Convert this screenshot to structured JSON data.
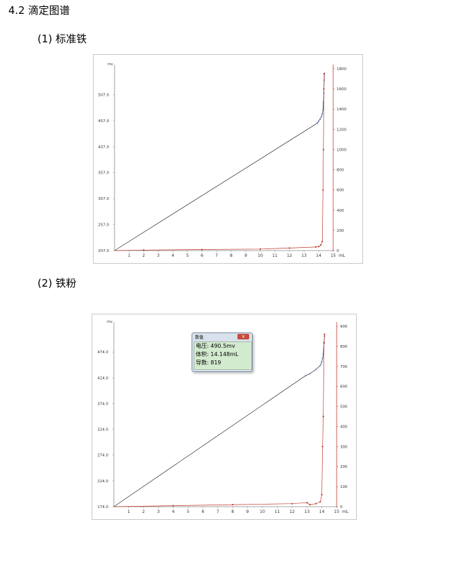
{
  "section_title": "4.2 滴定图谱",
  "subsection_1": "(1)  标准铁",
  "subsection_2": "(2)  铁粉",
  "colors": {
    "potential_curve": "#2a2a2a",
    "derivative_curve": "#c0392b",
    "point": "#6e7fc0",
    "axis": "#8a8a8a"
  },
  "popup": {
    "title": "数值",
    "close_label": "×",
    "rows": [
      {
        "label": "电压:",
        "value": "490.5mv"
      },
      {
        "label": "体积:",
        "value": "14.148mL"
      },
      {
        "label": "导数:",
        "value": "819"
      }
    ]
  },
  "chart_data": [
    {
      "type": "line",
      "name_ref": "标准铁",
      "ylabel": "mv",
      "xlabel": "mL",
      "xlim": [
        0,
        15
      ],
      "ylim": [
        207,
        557
      ],
      "y2lim": [
        0,
        1800
      ],
      "xticks": [
        "1",
        "2",
        "3",
        "4",
        "5",
        "6",
        "7",
        "8",
        "9",
        "10",
        "11",
        "12",
        "13",
        "14",
        "15"
      ],
      "yticks": [
        {
          "v": 207,
          "label": "207.0"
        },
        {
          "v": 257,
          "label": "257.0"
        },
        {
          "v": 307,
          "label": "307.0"
        },
        {
          "v": 357,
          "label": "357.0"
        },
        {
          "v": 407,
          "label": "407.0"
        },
        {
          "v": 457,
          "label": "457.0"
        },
        {
          "v": 507,
          "label": "507.0"
        }
      ],
      "y2ticks": [
        "0",
        "200",
        "400",
        "600",
        "800",
        "1000",
        "1200",
        "1400",
        "1600",
        "1800"
      ],
      "series": [
        {
          "axis": "left",
          "values": [
            [
              0,
              207
            ],
            [
              13.9,
              452
            ],
            [
              14.0,
              456
            ],
            [
              14.1,
              460
            ],
            [
              14.2,
              465
            ],
            [
              14.25,
              470
            ],
            [
              14.3,
              478
            ],
            [
              14.33,
              492
            ],
            [
              14.36,
              510
            ],
            [
              14.38,
              535
            ],
            [
              14.4,
              548
            ]
          ]
        },
        {
          "axis": "right",
          "values": [
            [
              0,
              0
            ],
            [
              2,
              5
            ],
            [
              6,
              10
            ],
            [
              10,
              15
            ],
            [
              12,
              25
            ],
            [
              13.8,
              35
            ],
            [
              14.0,
              40
            ],
            [
              14.15,
              55
            ],
            [
              14.25,
              90
            ],
            [
              14.3,
              600
            ],
            [
              14.33,
              1000
            ],
            [
              14.36,
              1600
            ],
            [
              14.38,
              1750
            ]
          ]
        }
      ]
    },
    {
      "type": "line",
      "name_ref": "铁粉",
      "ylabel": "mv",
      "xlabel": "mL",
      "xlim": [
        0,
        15
      ],
      "ylim": [
        174,
        524
      ],
      "y2lim": [
        0,
        900
      ],
      "xticks": [
        "1",
        "2",
        "3",
        "4",
        "5",
        "6",
        "7",
        "8",
        "9",
        "10",
        "11",
        "12",
        "13",
        "14",
        "15"
      ],
      "yticks": [
        {
          "v": 174,
          "label": "174.0"
        },
        {
          "v": 224,
          "label": "224.0"
        },
        {
          "v": 274,
          "label": "274.0"
        },
        {
          "v": 324,
          "label": "324.0"
        },
        {
          "v": 374,
          "label": "374.0"
        },
        {
          "v": 424,
          "label": "424.0"
        },
        {
          "v": 474,
          "label": "474.0"
        }
      ],
      "y2ticks": [
        "0",
        "100",
        "200",
        "300",
        "400",
        "500",
        "600",
        "700",
        "800",
        "900"
      ],
      "series": [
        {
          "axis": "left",
          "values": [
            [
              0,
              174
            ],
            [
              12.9,
              428
            ],
            [
              13.2,
              432
            ],
            [
              13.6,
              440
            ],
            [
              13.9,
              448
            ],
            [
              14.0,
              455
            ],
            [
              14.05,
              462
            ],
            [
              14.1,
              470
            ],
            [
              14.148,
              490.5
            ],
            [
              14.18,
              505
            ]
          ]
        },
        {
          "axis": "right",
          "values": [
            [
              0,
              0
            ],
            [
              4,
              5
            ],
            [
              8,
              10
            ],
            [
              12,
              15
            ],
            [
              13.0,
              20
            ],
            [
              13.2,
              10
            ],
            [
              13.6,
              15
            ],
            [
              13.9,
              25
            ],
            [
              14.0,
              60
            ],
            [
              14.05,
              300
            ],
            [
              14.1,
              450
            ],
            [
              14.148,
              819
            ],
            [
              14.18,
              860
            ]
          ]
        }
      ]
    }
  ]
}
